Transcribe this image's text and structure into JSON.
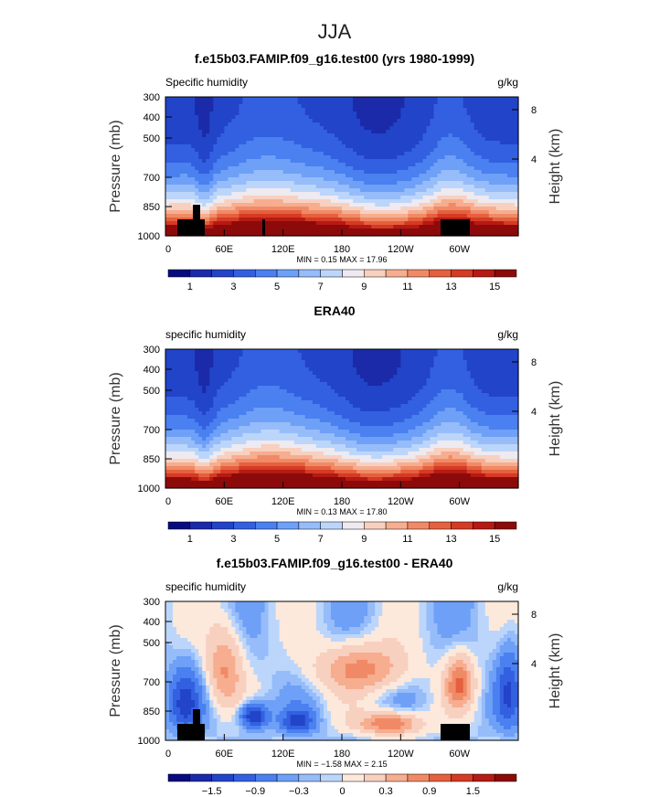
{
  "figure": {
    "title": "JJA"
  },
  "chart_data": [
    {
      "type": "heatmap",
      "title": "f.e15b03.FAMIP.f09_g16.test00 (yrs 1980-1999)",
      "left_label": "Specific humidity",
      "right_label": "g/kg",
      "xlabel": "",
      "ylabel": "Pressure (mb)",
      "y2label": "Height (km)",
      "x_ticks": [
        "0",
        "60E",
        "120E",
        "180",
        "120W",
        "60W"
      ],
      "y_ticks": [
        "300",
        "400",
        "500",
        "700",
        "850",
        "1000"
      ],
      "y2_ticks": [
        "8",
        "4"
      ],
      "min_max_text": "MIN =    0.15   MAX =   17.96",
      "min": 0.15,
      "max": 17.96,
      "colorbar_labels": [
        "1",
        "3",
        "5",
        "7",
        "9",
        "11",
        "13",
        "15"
      ]
    },
    {
      "type": "heatmap",
      "title": "ERA40",
      "left_label": "specific humidity",
      "right_label": "g/kg",
      "xlabel": "",
      "ylabel": "Pressure (mb)",
      "y2label": "Height (km)",
      "x_ticks": [
        "0",
        "60E",
        "120E",
        "180",
        "120W",
        "60W"
      ],
      "y_ticks": [
        "300",
        "400",
        "500",
        "700",
        "850",
        "1000"
      ],
      "y2_ticks": [
        "8",
        "4"
      ],
      "min_max_text": "MIN =    0.13   MAX =   17.80",
      "min": 0.13,
      "max": 17.8,
      "colorbar_labels": [
        "1",
        "3",
        "5",
        "7",
        "9",
        "11",
        "13",
        "15"
      ]
    },
    {
      "type": "heatmap",
      "title": "f.e15b03.FAMIP.f09_g16.test00 - ERA40",
      "left_label": "specific humidity",
      "right_label": "g/kg",
      "xlabel": "",
      "ylabel": "Pressure (mb)",
      "y2label": "Height (km)",
      "x_ticks": [
        "0",
        "60E",
        "120E",
        "180",
        "120W",
        "60W"
      ],
      "y_ticks": [
        "300",
        "400",
        "500",
        "700",
        "850",
        "1000"
      ],
      "y2_ticks": [
        "8",
        "4"
      ],
      "min_max_text": "MIN =   −1.58   MAX =    2.15",
      "min": -1.58,
      "max": 2.15,
      "colorbar_labels": [
        "−1.5",
        "−0.9",
        "−0.3",
        "0",
        "0.3",
        "0.9",
        "1.5"
      ]
    }
  ],
  "colors": {
    "abs_scale": [
      "#0a0a80",
      "#1a2aa8",
      "#2244c8",
      "#3360e0",
      "#4a80ef",
      "#6ea0f7",
      "#96bcfa",
      "#bcd6fb",
      "#eeeaf0",
      "#f8d0bf",
      "#f7ad8f",
      "#f08a66",
      "#e5603e",
      "#d53a24",
      "#b51a14",
      "#8c0a0a"
    ],
    "diff_scale": [
      "#0a0a80",
      "#1a2aa8",
      "#2244c8",
      "#3360e0",
      "#4a80ef",
      "#6ea0f7",
      "#96bcfa",
      "#bcd6fb",
      "#fde8dc",
      "#f8d0bf",
      "#f7ad8f",
      "#f08a66",
      "#e5603e",
      "#d53a24",
      "#b51a14",
      "#8c0a0a"
    ],
    "topography": "#000000"
  }
}
